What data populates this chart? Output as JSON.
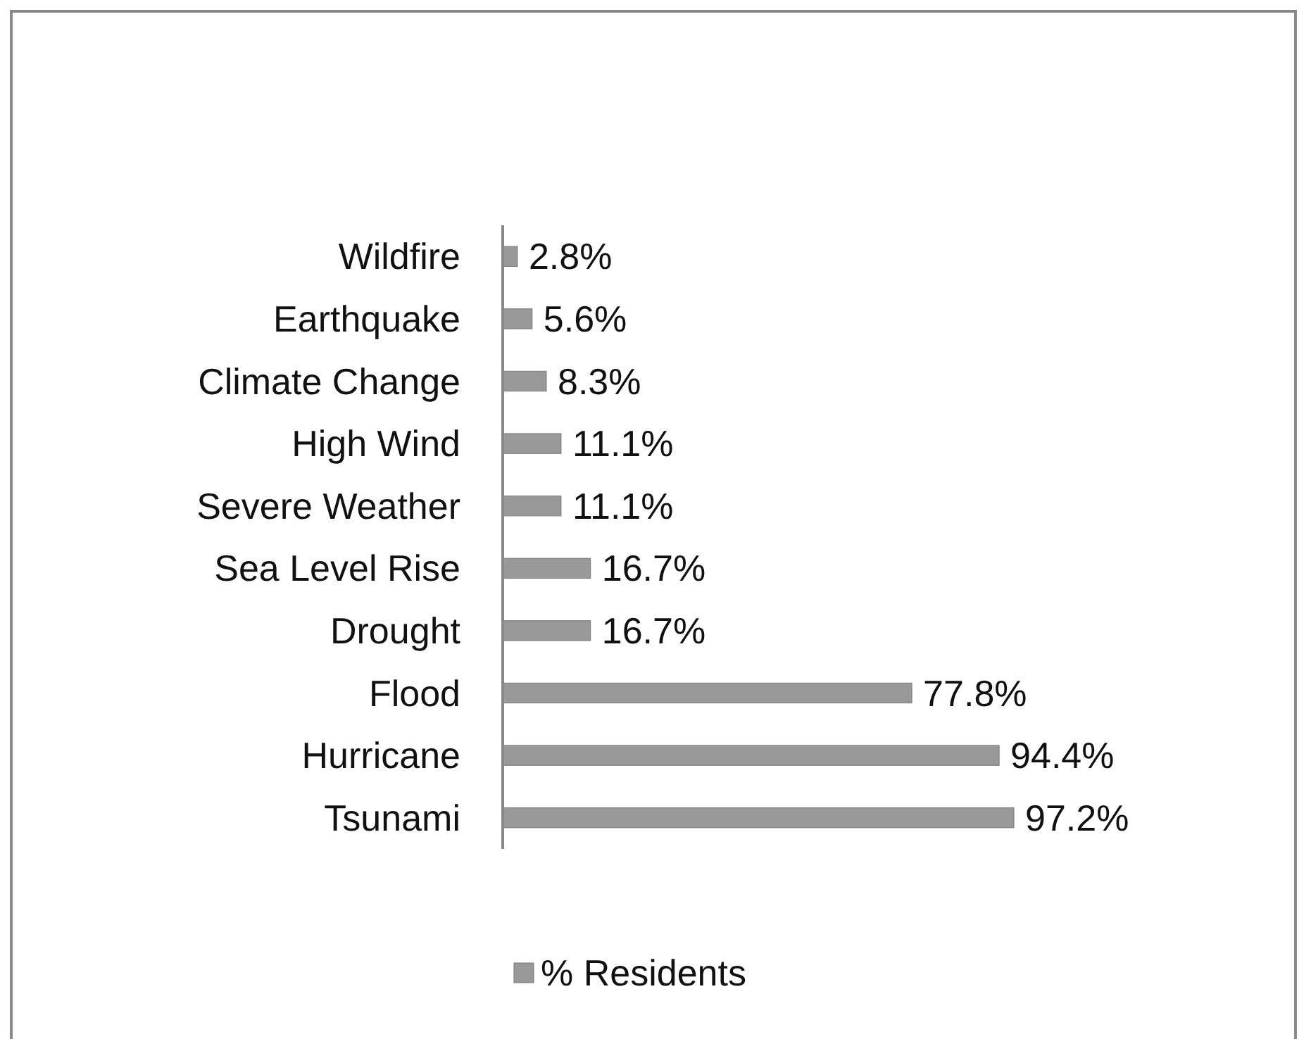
{
  "chart_data": {
    "type": "bar",
    "orientation": "horizontal",
    "legend": "bottom",
    "categories": [
      "Wildfire",
      "Earthquake",
      "Climate Change",
      "High Wind",
      "Severe Weather",
      "Sea Level Rise",
      "Drought",
      "Flood",
      "Hurricane",
      "Tsunami"
    ],
    "series": [
      {
        "name": "% Residents",
        "color": "#999999",
        "values": [
          2.8,
          5.6,
          8.3,
          11.1,
          11.1,
          16.7,
          16.7,
          77.8,
          94.4,
          97.2
        ],
        "value_labels": [
          "2.8%",
          "5.6%",
          "8.3%",
          "11.1%",
          "11.1%",
          "16.7%",
          "16.7%",
          "77.8%",
          "94.4%",
          "97.2%"
        ]
      }
    ]
  }
}
